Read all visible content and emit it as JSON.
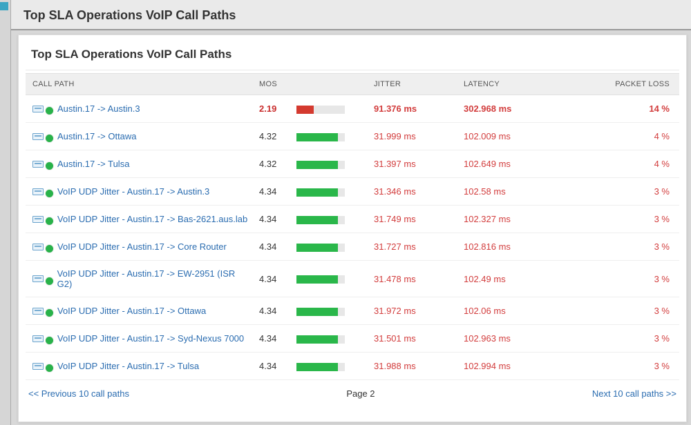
{
  "colors": {
    "link": "#2a6cb0",
    "metric_red": "#d23c3c",
    "mos_bad": "#c92d2d",
    "bar_green": "#2ab74a",
    "bar_red": "#d43a2f",
    "bar_track": "#e7e7e7",
    "status_green": "#29b24a",
    "header_bg": "#efefef",
    "panel_bg": "#ffffff",
    "page_bg": "#d8d8d8"
  },
  "outer_title": "Top SLA Operations VoIP Call Paths",
  "panel": {
    "title": "Top SLA Operations VoIP Call Paths"
  },
  "table": {
    "columns": {
      "callpath": "CALL PATH",
      "mos": "MOS",
      "jitter": "JITTER",
      "latency": "LATENCY",
      "packetloss": "PACKET LOSS"
    },
    "rows": [
      {
        "label": "Austin.17 -> Austin.3",
        "mos": "2.19",
        "mos_bad": true,
        "bar_fill_pct": 35,
        "bar_color": "red",
        "jitter": "91.376 ms",
        "latency": "302.968 ms",
        "packetloss": "14 %",
        "bold_metrics": true
      },
      {
        "label": "Austin.17 -> Ottawa",
        "mos": "4.32",
        "mos_bad": false,
        "bar_fill_pct": 86,
        "bar_color": "green",
        "jitter": "31.999 ms",
        "latency": "102.009 ms",
        "packetloss": "4 %",
        "bold_metrics": false
      },
      {
        "label": "Austin.17 -> Tulsa",
        "mos": "4.32",
        "mos_bad": false,
        "bar_fill_pct": 86,
        "bar_color": "green",
        "jitter": "31.397 ms",
        "latency": "102.649 ms",
        "packetloss": "4 %",
        "bold_metrics": false
      },
      {
        "label": "VoIP UDP Jitter - Austin.17 -> Austin.3",
        "mos": "4.34",
        "mos_bad": false,
        "bar_fill_pct": 86,
        "bar_color": "green",
        "jitter": "31.346 ms",
        "latency": "102.58 ms",
        "packetloss": "3 %",
        "bold_metrics": false
      },
      {
        "label": "VoIP UDP Jitter - Austin.17 -> Bas-2621.aus.lab",
        "mos": "4.34",
        "mos_bad": false,
        "bar_fill_pct": 86,
        "bar_color": "green",
        "jitter": "31.749 ms",
        "latency": "102.327 ms",
        "packetloss": "3 %",
        "bold_metrics": false
      },
      {
        "label": "VoIP UDP Jitter - Austin.17 -> Core Router",
        "mos": "4.34",
        "mos_bad": false,
        "bar_fill_pct": 86,
        "bar_color": "green",
        "jitter": "31.727 ms",
        "latency": "102.816 ms",
        "packetloss": "3 %",
        "bold_metrics": false
      },
      {
        "label": "VoIP UDP Jitter - Austin.17 -> EW-2951 (ISR G2)",
        "mos": "4.34",
        "mos_bad": false,
        "bar_fill_pct": 86,
        "bar_color": "green",
        "jitter": "31.478 ms",
        "latency": "102.49 ms",
        "packetloss": "3 %",
        "bold_metrics": false
      },
      {
        "label": "VoIP UDP Jitter - Austin.17 -> Ottawa",
        "mos": "4.34",
        "mos_bad": false,
        "bar_fill_pct": 86,
        "bar_color": "green",
        "jitter": "31.972 ms",
        "latency": "102.06 ms",
        "packetloss": "3 %",
        "bold_metrics": false
      },
      {
        "label": "VoIP UDP Jitter - Austin.17 -> Syd-Nexus 7000",
        "mos": "4.34",
        "mos_bad": false,
        "bar_fill_pct": 86,
        "bar_color": "green",
        "jitter": "31.501 ms",
        "latency": "102.963 ms",
        "packetloss": "3 %",
        "bold_metrics": false
      },
      {
        "label": "VoIP UDP Jitter - Austin.17 -> Tulsa",
        "mos": "4.34",
        "mos_bad": false,
        "bar_fill_pct": 86,
        "bar_color": "green",
        "jitter": "31.988 ms",
        "latency": "102.994 ms",
        "packetloss": "3 %",
        "bold_metrics": false
      }
    ]
  },
  "pager": {
    "prev": "<< Previous 10 call paths",
    "page": "Page 2",
    "next": "Next 10 call paths >>"
  }
}
